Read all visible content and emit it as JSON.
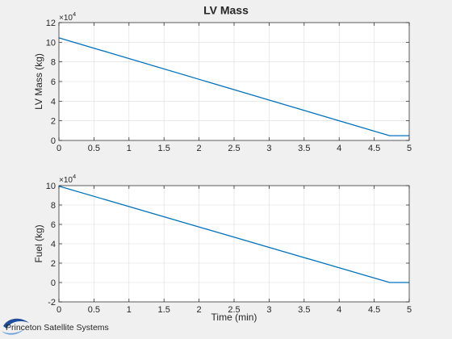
{
  "figure": {
    "title": "LV Mass",
    "logo_text": "Princeton Satellite Systems"
  },
  "colors": {
    "figure_background": "#f0f0f0",
    "axes_background": "#ffffff",
    "series": "#0072bd",
    "grid": "#dcdcdc"
  },
  "chart_data": [
    {
      "type": "line",
      "title": "LV Mass",
      "xlabel": "",
      "ylabel": "LV Mass  (kg)",
      "exponent_label": "×10",
      "exponent_power": "4",
      "xlim": [
        0,
        5
      ],
      "ylim": [
        0,
        12
      ],
      "xticks": [
        0,
        0.5,
        1,
        1.5,
        2,
        2.5,
        3,
        3.5,
        4,
        4.5,
        5
      ],
      "yticks": [
        0,
        2,
        4,
        6,
        8,
        10,
        12
      ],
      "xtick_labels": [
        "0",
        "0.5",
        "1",
        "1.5",
        "2",
        "2.5",
        "3",
        "3.5",
        "4",
        "4.5",
        "5"
      ],
      "ytick_labels": [
        "0",
        "2",
        "4",
        "6",
        "8",
        "10",
        "12"
      ],
      "grid": true,
      "series": [
        {
          "x": [
            0,
            4.72,
            5
          ],
          "y": [
            10.45,
            0.48,
            0.48
          ]
        }
      ]
    },
    {
      "type": "line",
      "xlabel": "Time (min)",
      "ylabel": "Fuel (kg)",
      "exponent_label": "×10",
      "exponent_power": "4",
      "xlim": [
        0,
        5
      ],
      "ylim": [
        -2,
        10
      ],
      "xticks": [
        0,
        0.5,
        1,
        1.5,
        2,
        2.5,
        3,
        3.5,
        4,
        4.5,
        5
      ],
      "yticks": [
        -2,
        0,
        2,
        4,
        6,
        8,
        10
      ],
      "xtick_labels": [
        "0",
        "0.5",
        "1",
        "1.5",
        "2",
        "2.5",
        "3",
        "3.5",
        "4",
        "4.5",
        "5"
      ],
      "ytick_labels": [
        "-2",
        "0",
        "2",
        "4",
        "6",
        "8",
        "10"
      ],
      "grid": true,
      "series": [
        {
          "x": [
            0,
            4.72,
            5
          ],
          "y": [
            9.95,
            0,
            0
          ]
        }
      ]
    }
  ]
}
